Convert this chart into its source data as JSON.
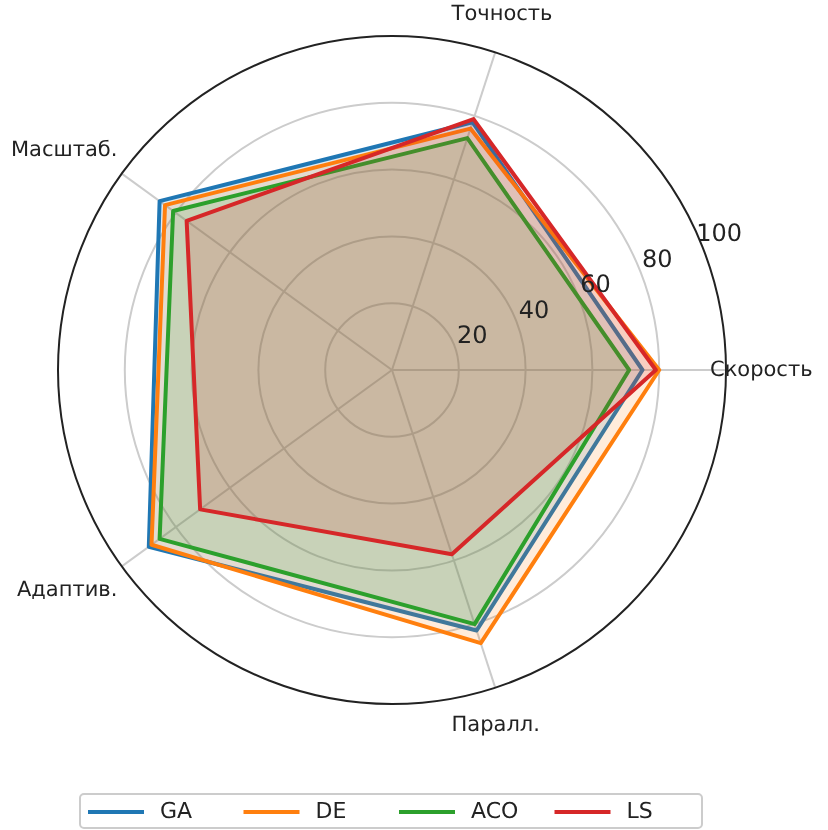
{
  "chart_data": {
    "type": "radar",
    "categories": [
      "Точность",
      "Скорость",
      "Паралл.",
      "Адаптив.",
      "Масштаб."
    ],
    "series": [
      {
        "name": "GA",
        "color": "#1f77b4",
        "values": [
          78,
          75,
          82,
          90,
          86
        ]
      },
      {
        "name": "DE",
        "color": "#ff7f0e",
        "values": [
          76,
          80,
          86,
          89,
          84
        ]
      },
      {
        "name": "ACO",
        "color": "#2ca02c",
        "values": [
          73,
          71,
          80,
          86,
          81
        ]
      },
      {
        "name": "LS",
        "color": "#d62728",
        "values": [
          79,
          79,
          58,
          71,
          76
        ]
      }
    ],
    "ylim": [
      0,
      100
    ],
    "yticks": [
      20,
      40,
      60,
      80,
      100
    ],
    "grid": true,
    "legend": "bottom"
  }
}
